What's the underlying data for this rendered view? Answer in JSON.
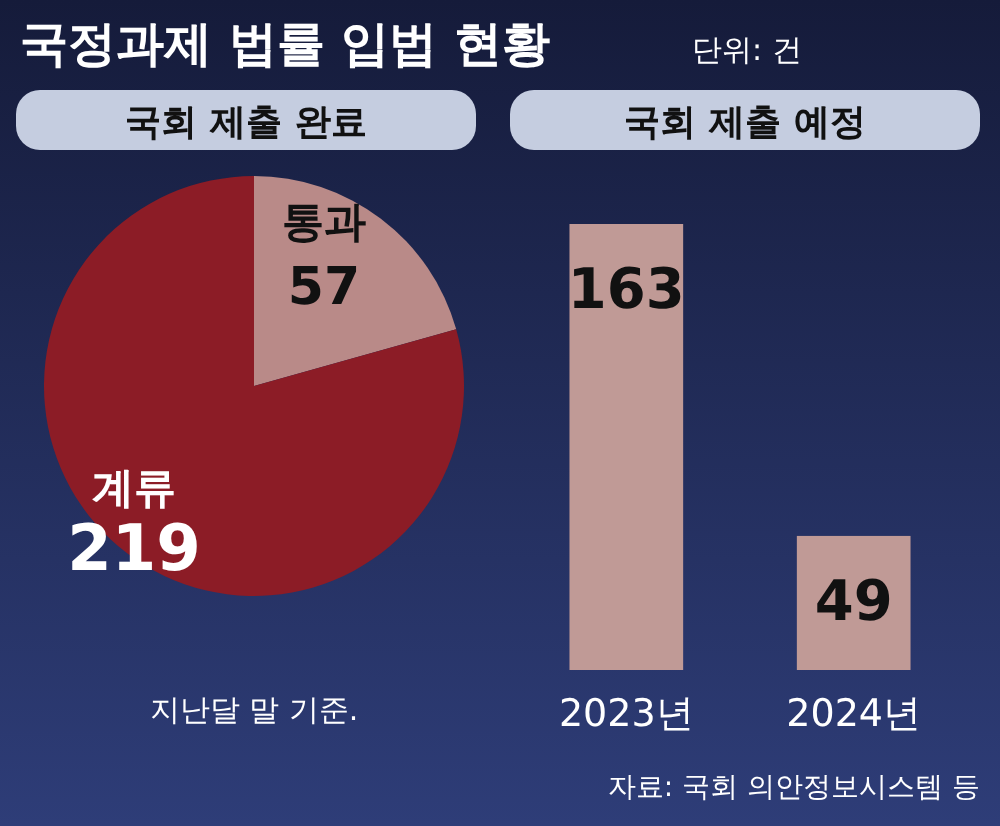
{
  "chart_data": [
    {
      "type": "pie",
      "title": "국정과제 법률 입법 현황",
      "subtitle": "국회 제출 완료",
      "categories": [
        "통과",
        "계류"
      ],
      "values": [
        57,
        219
      ],
      "colors": [
        "#b98a88",
        "#8c1c26"
      ],
      "data_labels": true,
      "annotations": [
        "단위: 건",
        "지난달 말 기준."
      ]
    },
    {
      "type": "bar",
      "subtitle": "국회 제출 예정",
      "categories": [
        "2023년",
        "2024년"
      ],
      "values": [
        163,
        49
      ],
      "color": "#c09a96",
      "data_labels": true,
      "annotations": [
        "자료: 국회 의안정보시스템 등"
      ]
    }
  ]
}
